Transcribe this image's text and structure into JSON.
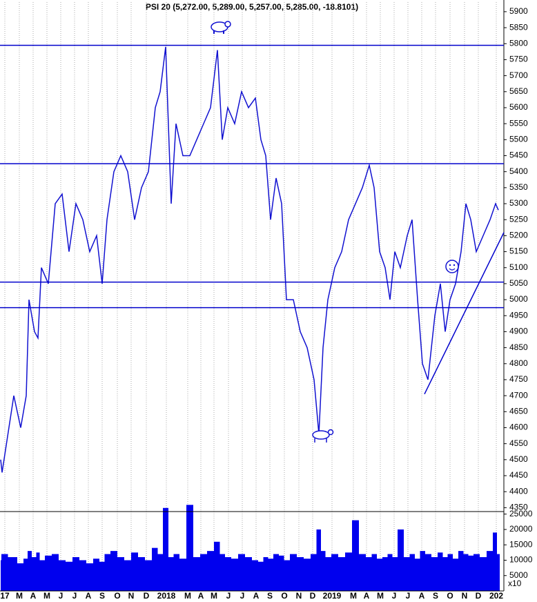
{
  "chart_data": {
    "type": "line",
    "title": "PSI 20 (5,272.00, 5,289.00, 5,257.00, 5,285.00, -18.8101)",
    "x": [
      0,
      0.1,
      0.95,
      1.45,
      1.85,
      2.05,
      2.45,
      2.7,
      2.95,
      3.45,
      3.95,
      4.45,
      4.95,
      5.45,
      5.95,
      6.45,
      6.95,
      7.35,
      7.7,
      8.2,
      8.7,
      9.2,
      9.7,
      10.2,
      10.7,
      11.2,
      11.55,
      11.95,
      12.35,
      12.7,
      13.2,
      13.7,
      14.2,
      14.7,
      15.2,
      15.7,
      16.05,
      16.45,
      16.95,
      17.45,
      17.95,
      18.45,
      18.85,
      19.2,
      19.55,
      19.95,
      20.35,
      20.7,
      21.2,
      21.7,
      22.2,
      22.7,
      23.05,
      23.35,
      23.7,
      24.2,
      24.7,
      25.2,
      25.7,
      26.2,
      26.7,
      27.05,
      27.45,
      27.85,
      28.2,
      28.55,
      28.95,
      29.45,
      29.8,
      30.2,
      30.55,
      30.95,
      31.45,
      31.85,
      32.2,
      32.55,
      32.95,
      33.35,
      33.7,
      34.05,
      34.45,
      34.95,
      35.45,
      35.85,
      36.05
    ],
    "series": [
      {
        "name": "PSI 20",
        "color": "#1010d0",
        "values": [
          4500,
          4460,
          4700,
          4600,
          4700,
          5000,
          4900,
          4880,
          5100,
          5050,
          5300,
          5330,
          5150,
          5300,
          5250,
          5150,
          5200,
          5050,
          5250,
          5400,
          5450,
          5400,
          5250,
          5350,
          5400,
          5600,
          5650,
          5790,
          5300,
          5550,
          5450,
          5450,
          5500,
          5550,
          5600,
          5780,
          5500,
          5600,
          5550,
          5650,
          5600,
          5630,
          5500,
          5450,
          5250,
          5380,
          5300,
          5000,
          5000,
          4900,
          4850,
          4750,
          4580,
          4850,
          5000,
          5100,
          5150,
          5250,
          5300,
          5350,
          5420,
          5350,
          5150,
          5100,
          5000,
          5150,
          5100,
          5200,
          5250,
          5000,
          4800,
          4750,
          4950,
          5050,
          4900,
          5000,
          5050,
          5150,
          5300,
          5250,
          5150,
          5200,
          5250,
          5300,
          5280
        ]
      },
      {
        "name": "Volume",
        "color": "#0000ee",
        "axis": "y2",
        "values": [
          10000,
          12000,
          11000,
          9000,
          10500,
          13000,
          11000,
          12500,
          10000,
          11500,
          12000,
          10000,
          9500,
          11000,
          10000,
          9000,
          10500,
          9500,
          12000,
          13000,
          11000,
          10000,
          12500,
          11000,
          10000,
          14000,
          12000,
          27000,
          11000,
          12000,
          10500,
          28000,
          11000,
          12000,
          13000,
          16000,
          12000,
          11000,
          10500,
          12000,
          11000,
          10000,
          9500,
          11000,
          10500,
          12000,
          11500,
          10000,
          12000,
          11000,
          10500,
          12000,
          20000,
          13000,
          11000,
          12000,
          11000,
          12500,
          23000,
          12000,
          11000,
          12000,
          10500,
          11000,
          12000,
          11000,
          20000,
          11000,
          12000,
          10500,
          13000,
          12000,
          11000,
          12500,
          11000,
          12000,
          10500,
          13000,
          12000,
          11500,
          12000,
          11000,
          13000,
          19000,
          12000
        ]
      }
    ],
    "xlim": [
      -0.05,
      36.45
    ],
    "xticks": [
      {
        "value": 0.3,
        "label": "17"
      },
      {
        "value": 1.35,
        "label": "M"
      },
      {
        "value": 2.35,
        "label": "A"
      },
      {
        "value": 3.35,
        "label": "M"
      },
      {
        "value": 4.35,
        "label": "J"
      },
      {
        "value": 5.35,
        "label": "J"
      },
      {
        "value": 6.35,
        "label": "A"
      },
      {
        "value": 7.35,
        "label": "S"
      },
      {
        "value": 8.45,
        "label": "O"
      },
      {
        "value": 9.45,
        "label": "N"
      },
      {
        "value": 10.55,
        "label": "D"
      },
      {
        "value": 12,
        "label": "2018"
      },
      {
        "value": 13.55,
        "label": "M"
      },
      {
        "value": 14.5,
        "label": "A"
      },
      {
        "value": 15.45,
        "label": "M"
      },
      {
        "value": 16.5,
        "label": "J"
      },
      {
        "value": 17.5,
        "label": "J"
      },
      {
        "value": 18.5,
        "label": "A"
      },
      {
        "value": 19.5,
        "label": "S"
      },
      {
        "value": 20.55,
        "label": "O"
      },
      {
        "value": 21.6,
        "label": "N"
      },
      {
        "value": 22.6,
        "label": "D"
      },
      {
        "value": 24,
        "label": "2019"
      },
      {
        "value": 25.55,
        "label": "M"
      },
      {
        "value": 26.5,
        "label": "A"
      },
      {
        "value": 27.5,
        "label": "M"
      },
      {
        "value": 28.5,
        "label": "J"
      },
      {
        "value": 29.5,
        "label": "J"
      },
      {
        "value": 30.5,
        "label": "A"
      },
      {
        "value": 31.5,
        "label": "S"
      },
      {
        "value": 32.55,
        "label": "O"
      },
      {
        "value": 33.6,
        "label": "N"
      },
      {
        "value": 34.6,
        "label": "D"
      },
      {
        "value": 35.9,
        "label": "202"
      }
    ],
    "ylim": [
      4340,
      5930
    ],
    "yticks": [
      4350,
      4400,
      4450,
      4500,
      4550,
      4600,
      4650,
      4700,
      4750,
      4800,
      4850,
      4900,
      4950,
      5000,
      5050,
      5100,
      5150,
      5200,
      5250,
      5300,
      5350,
      5400,
      5450,
      5500,
      5550,
      5600,
      5650,
      5700,
      5750,
      5800,
      5850,
      5900
    ],
    "y2lim": [
      0,
      25600
    ],
    "y2ticks": [
      5000,
      10000,
      15000,
      20000,
      25000
    ],
    "volume_unit": "x10",
    "hlines": [
      5795,
      5425,
      5055,
      4975
    ],
    "trendline": {
      "x": [
        30.7,
        36.45
      ],
      "y": [
        4705,
        5210
      ]
    },
    "grid": true
  }
}
